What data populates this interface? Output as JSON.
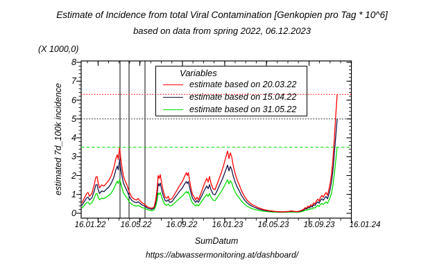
{
  "header": {
    "title": "Estimate of Incidence from total Viral Contamination [Genkopien pro Tag * 10^6]",
    "subtitle": "based on data from spring 2022, 06.12.2023"
  },
  "footer_url": "https://abwassermonitoring.at/dashboard/",
  "legend": {
    "title": "Variables",
    "entries": [
      {
        "label": "estimate based on 20.03.22",
        "color": "#ff0000"
      },
      {
        "label": "estimate based on 15.04.22",
        "color": "#14144b"
      },
      {
        "label": "estimate based on 31.05.22",
        "color": "#00dd00"
      }
    ]
  },
  "chart_data": {
    "type": "line",
    "title": "Estimate of Incidence from total Viral Contamination [Genkopien pro Tag * 10^6]",
    "subtitle": "based on data from spring 2022, 06.12.2023",
    "xlabel": "SumDatum",
    "ylabel": "estimated 7d_100k incidence",
    "y_scale_note": "(X 1000,0)",
    "ylim": [
      0,
      8
    ],
    "y_ticks": [
      0,
      1,
      2,
      3,
      4,
      5,
      6,
      7,
      8
    ],
    "x_tick_labels": [
      "16.01.22",
      "16.05.22",
      "16.09.22",
      "16.01.23",
      "16.05.23",
      "16.09.23",
      "16.01.24"
    ],
    "x_tick_days": [
      0,
      120,
      243,
      365,
      485,
      608,
      730
    ],
    "x_unit": "days since 16.01.22",
    "grid": false,
    "legend_position": "inside-top-center",
    "x_days": [
      -47,
      -40,
      -33,
      -29,
      -25,
      -18,
      -11,
      -7,
      -3,
      0,
      4,
      10,
      17,
      24,
      31,
      38,
      45,
      51,
      55,
      58,
      62,
      65,
      69,
      73,
      77,
      83,
      90,
      97,
      104,
      111,
      115,
      120,
      127,
      134,
      141,
      148,
      155,
      161,
      166,
      170,
      173,
      176,
      179,
      183,
      188,
      193,
      198,
      202,
      206,
      213,
      220,
      228,
      236,
      243,
      249,
      254,
      257,
      260,
      264,
      268,
      272,
      277,
      281,
      285,
      289,
      295,
      301,
      307,
      313,
      317,
      321,
      325,
      331,
      337,
      343,
      349,
      355,
      361,
      367,
      373,
      377,
      381,
      385,
      389,
      395,
      401,
      407,
      413,
      421,
      429,
      437,
      445,
      453,
      461,
      469,
      477,
      485,
      493,
      501,
      509,
      517,
      525,
      533,
      541,
      549,
      557,
      565,
      573,
      581,
      589,
      593,
      597,
      601,
      605,
      609,
      613,
      617,
      621,
      625,
      629,
      633,
      637,
      641,
      645,
      649,
      653,
      657,
      661,
      665,
      669,
      673,
      677,
      681,
      685,
      689
    ],
    "series": [
      {
        "name": "estimate based on 20.03.22",
        "color": "#ff0000",
        "values": [
          0.55,
          0.8,
          1.05,
          1.1,
          0.9,
          1.05,
          1.55,
          1.9,
          1.95,
          1.6,
          1.35,
          1.5,
          1.45,
          1.6,
          1.75,
          2.0,
          2.4,
          2.9,
          3.1,
          2.85,
          3.5,
          2.9,
          2.4,
          1.95,
          1.75,
          1.5,
          1.1,
          0.85,
          0.75,
          0.7,
          0.78,
          0.68,
          0.55,
          0.48,
          0.35,
          0.3,
          0.26,
          0.33,
          0.7,
          1.3,
          2.0,
          1.85,
          2.05,
          1.6,
          1.15,
          0.85,
          0.8,
          0.9,
          0.72,
          0.78,
          1.0,
          1.25,
          1.5,
          1.7,
          1.95,
          2.15,
          2.0,
          2.15,
          1.7,
          1.3,
          1.0,
          0.85,
          0.72,
          0.85,
          0.72,
          1.0,
          1.3,
          1.6,
          1.85,
          1.65,
          1.95,
          1.6,
          1.3,
          1.25,
          1.55,
          1.85,
          2.15,
          2.5,
          2.9,
          3.3,
          2.9,
          3.2,
          3.0,
          2.55,
          2.1,
          1.75,
          1.5,
          1.2,
          0.92,
          0.7,
          0.55,
          0.45,
          0.38,
          0.3,
          0.25,
          0.2,
          0.17,
          0.14,
          0.12,
          0.1,
          0.09,
          0.08,
          0.08,
          0.09,
          0.1,
          0.12,
          0.1,
          0.09,
          0.12,
          0.18,
          0.22,
          0.3,
          0.27,
          0.38,
          0.34,
          0.45,
          0.4,
          0.55,
          0.5,
          0.65,
          0.75,
          0.65,
          0.85,
          0.95,
          0.85,
          1.0,
          1.1,
          0.95,
          1.25,
          1.6,
          2.1,
          2.9,
          4.0,
          5.2,
          6.3
        ]
      },
      {
        "name": "estimate based on 15.04.22",
        "color": "#14144b",
        "values": [
          0.42,
          0.62,
          0.82,
          0.85,
          0.7,
          0.82,
          1.2,
          1.5,
          1.52,
          1.25,
          1.05,
          1.18,
          1.15,
          1.28,
          1.4,
          1.6,
          1.9,
          2.3,
          2.5,
          2.3,
          2.85,
          2.35,
          1.95,
          1.6,
          1.42,
          1.2,
          0.88,
          0.68,
          0.6,
          0.56,
          0.62,
          0.54,
          0.44,
          0.38,
          0.28,
          0.24,
          0.21,
          0.27,
          0.55,
          1.02,
          1.58,
          1.45,
          1.6,
          1.25,
          0.9,
          0.68,
          0.64,
          0.72,
          0.58,
          0.62,
          0.8,
          1.0,
          1.2,
          1.35,
          1.55,
          1.68,
          1.58,
          1.68,
          1.35,
          1.05,
          0.8,
          0.68,
          0.58,
          0.68,
          0.58,
          0.8,
          1.02,
          1.25,
          1.45,
          1.3,
          1.52,
          1.25,
          1.02,
          0.98,
          1.2,
          1.45,
          1.68,
          1.95,
          2.25,
          2.55,
          2.25,
          2.48,
          2.32,
          2.0,
          1.65,
          1.38,
          1.18,
          0.95,
          0.73,
          0.56,
          0.44,
          0.36,
          0.3,
          0.24,
          0.2,
          0.16,
          0.14,
          0.12,
          0.1,
          0.09,
          0.08,
          0.07,
          0.07,
          0.08,
          0.09,
          0.1,
          0.09,
          0.08,
          0.1,
          0.15,
          0.18,
          0.25,
          0.22,
          0.31,
          0.28,
          0.37,
          0.33,
          0.45,
          0.41,
          0.53,
          0.61,
          0.53,
          0.69,
          0.77,
          0.69,
          0.81,
          0.89,
          0.77,
          1.0,
          1.28,
          1.7,
          2.3,
          3.2,
          4.1,
          5.0
        ]
      },
      {
        "name": "estimate based on 31.05.22",
        "color": "#00dd00",
        "values": [
          0.28,
          0.42,
          0.56,
          0.58,
          0.48,
          0.56,
          0.82,
          1.02,
          1.05,
          0.85,
          0.72,
          0.8,
          0.78,
          0.87,
          0.95,
          1.08,
          1.3,
          1.55,
          1.7,
          1.58,
          1.8,
          1.6,
          1.32,
          1.08,
          0.97,
          0.82,
          0.6,
          0.47,
          0.41,
          0.38,
          0.42,
          0.37,
          0.3,
          0.26,
          0.19,
          0.16,
          0.14,
          0.18,
          0.38,
          0.7,
          1.08,
          1.0,
          1.1,
          0.86,
          0.62,
          0.46,
          0.43,
          0.49,
          0.39,
          0.42,
          0.54,
          0.68,
          0.81,
          0.92,
          1.05,
          1.15,
          1.08,
          1.15,
          0.92,
          0.7,
          0.54,
          0.46,
          0.39,
          0.46,
          0.39,
          0.54,
          0.7,
          0.86,
          1.0,
          0.89,
          1.05,
          0.86,
          0.7,
          0.67,
          0.83,
          1.0,
          1.15,
          1.35,
          1.56,
          1.78,
          1.56,
          1.72,
          1.62,
          1.38,
          1.13,
          0.94,
          0.81,
          0.65,
          0.5,
          0.38,
          0.3,
          0.24,
          0.2,
          0.16,
          0.13,
          0.11,
          0.09,
          0.08,
          0.07,
          0.06,
          0.06,
          0.05,
          0.05,
          0.06,
          0.06,
          0.07,
          0.06,
          0.06,
          0.07,
          0.1,
          0.12,
          0.17,
          0.15,
          0.21,
          0.19,
          0.25,
          0.22,
          0.3,
          0.27,
          0.36,
          0.41,
          0.36,
          0.47,
          0.52,
          0.47,
          0.55,
          0.6,
          0.52,
          0.68,
          0.85,
          1.1,
          1.5,
          2.1,
          2.8,
          3.5
        ]
      }
    ],
    "horizontal_reference_lines": [
      {
        "value": 6.3,
        "color": "#ff0000",
        "style": "dotted"
      },
      {
        "value": 5.0,
        "color": "#000000",
        "style": "dotted"
      },
      {
        "value": 3.5,
        "color": "#00dd00",
        "style": "dashed"
      }
    ],
    "vertical_event_lines": {
      "dates": [
        "20.03.22",
        "15.04.22",
        "31.05.22"
      ],
      "days_since_16_01_22": [
        63,
        89,
        135
      ],
      "color": "#000000"
    }
  }
}
